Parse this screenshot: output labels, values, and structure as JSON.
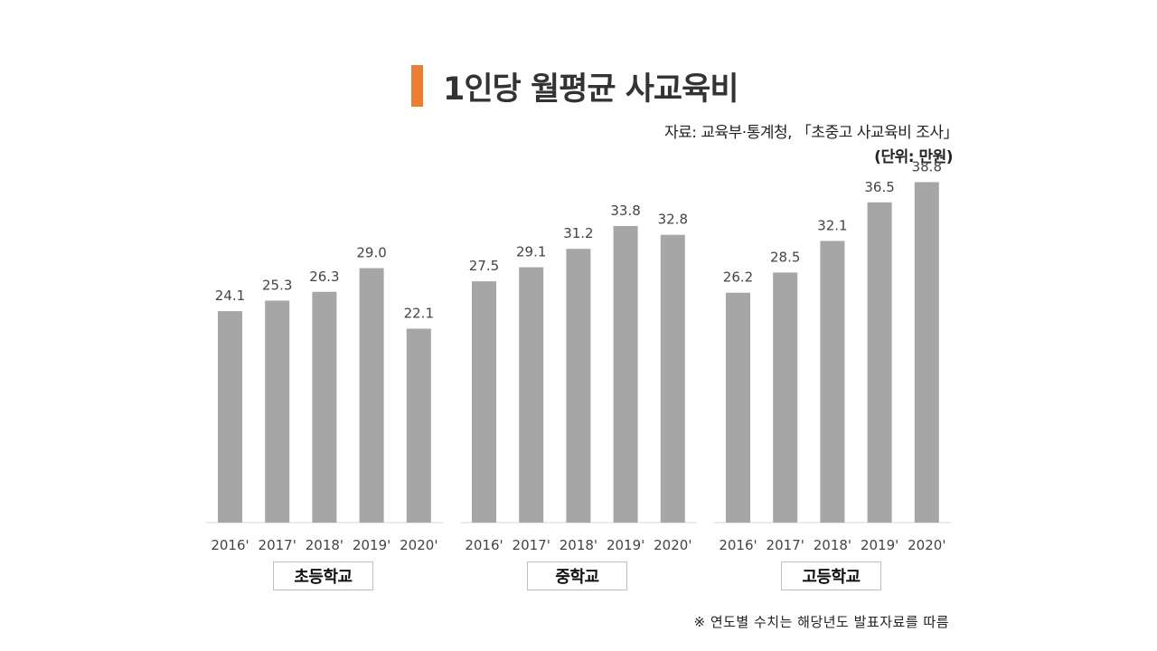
{
  "title": "1인당 월평균 사교육비",
  "source": "자료: 교육부·통계청, 「초중고 사교육비 조사」",
  "unit": "(단위: 만원)",
  "footnote": "※ 연도별 수치는 해당년도 발표자료를 따름",
  "colors": {
    "accent": "#ed7d31",
    "bar": "#a6a6a6"
  },
  "chart_data": {
    "type": "bar",
    "title": "1인당 월평균 사교육비",
    "ylabel": "만원",
    "ylim": [
      0,
      40
    ],
    "categories": [
      "2016'",
      "2017'",
      "2018'",
      "2019'",
      "2020'"
    ],
    "series": [
      {
        "name": "초등학교",
        "values": [
          24.1,
          25.3,
          26.3,
          29.0,
          22.1
        ],
        "labels": [
          "24.1",
          "25.3",
          "26.3",
          "29.0",
          "22.1"
        ]
      },
      {
        "name": "중학교",
        "values": [
          27.5,
          29.1,
          31.2,
          33.8,
          32.8
        ],
        "labels": [
          "27.5",
          "29.1",
          "31.2",
          "33.8",
          "32.8"
        ]
      },
      {
        "name": "고등학교",
        "values": [
          26.2,
          28.5,
          32.1,
          36.5,
          38.8
        ],
        "labels": [
          "26.2",
          "28.5",
          "32.1",
          "36.5",
          "38.8"
        ]
      }
    ]
  }
}
